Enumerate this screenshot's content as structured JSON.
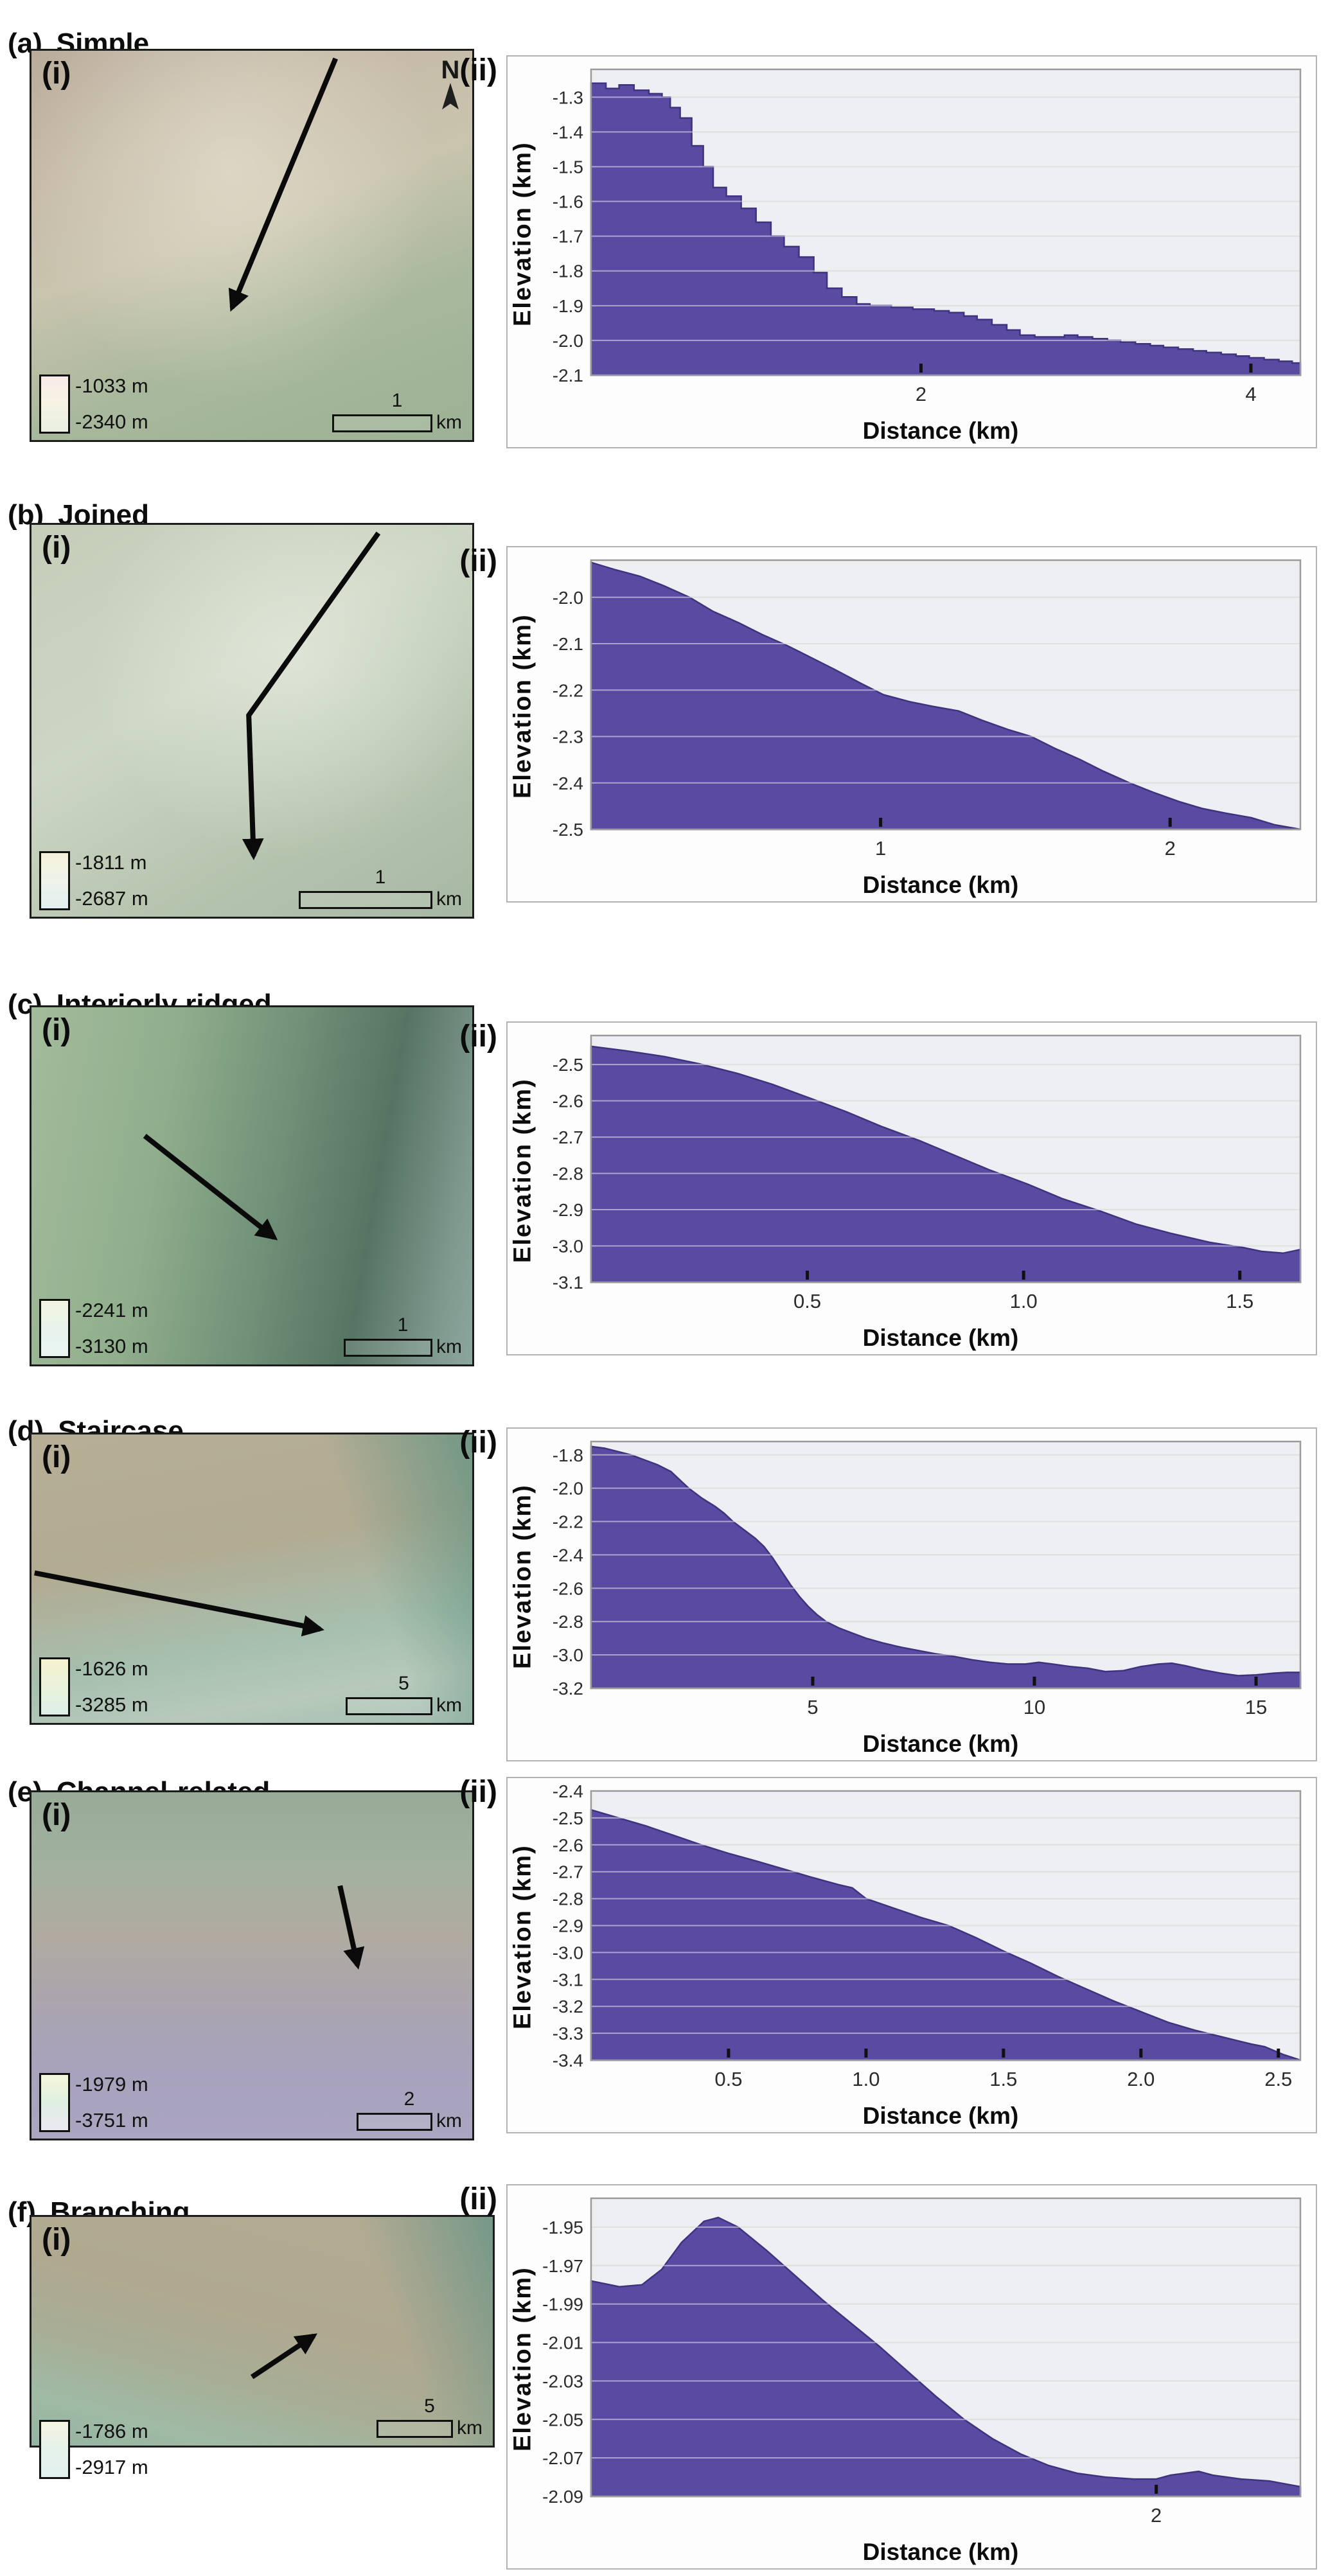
{
  "colors": {
    "profile_fill": "#5a4aa1",
    "profile_edge": "#3f3380",
    "plot_bg": "#edeff3",
    "grid": "#c2c2c2"
  },
  "panels": [
    {
      "label": "(a)",
      "title": "Simple",
      "map": {
        "sublabel": "(i)",
        "north": "N",
        "legend": {
          "top": "-1033 m",
          "bottom": "-2340 m",
          "gradient": [
            "#f8ebe9",
            "#f6f3e3",
            "#e7efe3"
          ]
        },
        "scalebar": {
          "value": "1",
          "unit": "km"
        }
      },
      "chart": {
        "sublabel": "(ii)",
        "ylabel": "Elevation (km)",
        "xlabel": "Distance (km)"
      }
    },
    {
      "label": "(b)",
      "title": "Joined",
      "map": {
        "sublabel": "(i)",
        "legend": {
          "top": "-1811 m",
          "bottom": "-2687 m",
          "gradient": [
            "#f4f1da",
            "#edf3e9",
            "#e2eff0"
          ]
        },
        "scalebar": {
          "value": "1",
          "unit": "km"
        }
      },
      "chart": {
        "sublabel": "(ii)",
        "ylabel": "Elevation (km)",
        "xlabel": "Distance (km)"
      }
    },
    {
      "label": "(c)",
      "title": "Interiorly ridged",
      "map": {
        "sublabel": "(i)",
        "legend": {
          "top": "-2241 m",
          "bottom": "-3130 m",
          "gradient": [
            "#f2f5df",
            "#e8f3ec",
            "#e9f4f2"
          ]
        },
        "scalebar": {
          "value": "1",
          "unit": "km"
        }
      },
      "chart": {
        "sublabel": "(ii)",
        "ylabel": "Elevation (km)",
        "xlabel": "Distance (km)"
      }
    },
    {
      "label": "(d)",
      "title": "Staircase",
      "map": {
        "sublabel": "(i)",
        "legend": {
          "top": "-1626 m",
          "bottom": "-3285 m",
          "gradient": [
            "#f6f2cf",
            "#e9f2da",
            "#ddefe9"
          ]
        },
        "scalebar": {
          "value": "5",
          "unit": "km"
        }
      },
      "chart": {
        "sublabel": "(ii)",
        "ylabel": "Elevation (km)",
        "xlabel": "Distance (km)"
      }
    },
    {
      "label": "(e)",
      "title": "Channel-related",
      "map": {
        "sublabel": "(i)",
        "legend": {
          "top": "-1979 m",
          "bottom": "-3751 m",
          "gradient": [
            "#f7f5d9",
            "#def0e2",
            "#ebe8f2"
          ]
        },
        "scalebar": {
          "value": "2",
          "unit": "km"
        }
      },
      "chart": {
        "sublabel": "(ii)",
        "ylabel": "Elevation (km)",
        "xlabel": "Distance (km)"
      }
    },
    {
      "label": "(f)",
      "title": "Branching",
      "map": {
        "sublabel": "(i)",
        "legend": {
          "top": "-1786 m",
          "bottom": "-2917 m",
          "gradient": [
            "#f4f4e4",
            "#e6f1ea",
            "#e1f0ef"
          ]
        },
        "scalebar": {
          "value": "5",
          "unit": "km"
        }
      },
      "chart": {
        "sublabel": "(ii)",
        "ylabel": "Elevation (km)",
        "xlabel": "Distance (km)"
      }
    }
  ],
  "chart_data": [
    {
      "type": "area",
      "style": "step",
      "xlim": [
        0,
        4.3
      ],
      "ylim": [
        -1.22,
        -2.1
      ],
      "yticks": [
        -1.3,
        -1.4,
        -1.5,
        -1.6,
        -1.7,
        -1.8,
        -1.9,
        -2.0,
        -2.1
      ],
      "ytick_labels": [
        "-1.3",
        "-1.4",
        "-1.5",
        "-1.6",
        "-1.7",
        "-1.8",
        "-1.9",
        "-2.0",
        "-2.1"
      ],
      "xticks": [
        2,
        4
      ],
      "xtick_labels": [
        "2",
        "4"
      ],
      "points": [
        [
          0,
          -1.26
        ],
        [
          0.09,
          -1.275
        ],
        [
          0.17,
          -1.265
        ],
        [
          0.26,
          -1.28
        ],
        [
          0.35,
          -1.29
        ],
        [
          0.43,
          -1.3
        ],
        [
          0.48,
          -1.33
        ],
        [
          0.54,
          -1.36
        ],
        [
          0.61,
          -1.44
        ],
        [
          0.68,
          -1.5
        ],
        [
          0.74,
          -1.56
        ],
        [
          0.82,
          -1.585
        ],
        [
          0.91,
          -1.62
        ],
        [
          1.0,
          -1.66
        ],
        [
          1.09,
          -1.7
        ],
        [
          1.17,
          -1.73
        ],
        [
          1.26,
          -1.76
        ],
        [
          1.35,
          -1.805
        ],
        [
          1.43,
          -1.85
        ],
        [
          1.52,
          -1.875
        ],
        [
          1.61,
          -1.895
        ],
        [
          1.69,
          -1.9
        ],
        [
          1.82,
          -1.905
        ],
        [
          1.95,
          -1.91
        ],
        [
          2.08,
          -1.915
        ],
        [
          2.17,
          -1.92
        ],
        [
          2.26,
          -1.93
        ],
        [
          2.34,
          -1.94
        ],
        [
          2.43,
          -1.955
        ],
        [
          2.52,
          -1.97
        ],
        [
          2.6,
          -1.985
        ],
        [
          2.69,
          -1.99
        ],
        [
          2.78,
          -1.99
        ],
        [
          2.87,
          -1.985
        ],
        [
          2.95,
          -1.99
        ],
        [
          3.04,
          -1.995
        ],
        [
          3.13,
          -2.0
        ],
        [
          3.21,
          -2.005
        ],
        [
          3.3,
          -2.01
        ],
        [
          3.39,
          -2.015
        ],
        [
          3.47,
          -2.02
        ],
        [
          3.56,
          -2.025
        ],
        [
          3.65,
          -2.03
        ],
        [
          3.73,
          -2.035
        ],
        [
          3.82,
          -2.04
        ],
        [
          3.91,
          -2.045
        ],
        [
          3.99,
          -2.05
        ],
        [
          4.08,
          -2.055
        ],
        [
          4.17,
          -2.06
        ],
        [
          4.25,
          -2.065
        ],
        [
          4.3,
          -2.07
        ]
      ]
    },
    {
      "type": "area",
      "style": "smooth",
      "xlim": [
        0,
        2.45
      ],
      "ylim": [
        -1.92,
        -2.5
      ],
      "yticks": [
        -2.0,
        -2.1,
        -2.2,
        -2.3,
        -2.4,
        -2.5
      ],
      "ytick_labels": [
        "-2.0",
        "-2.1",
        "-2.2",
        "-2.3",
        "-2.4",
        "-2.5"
      ],
      "xticks": [
        1,
        2
      ],
      "xtick_labels": [
        "1",
        "2"
      ],
      "points": [
        [
          0,
          -1.925
        ],
        [
          0.08,
          -1.94
        ],
        [
          0.17,
          -1.955
        ],
        [
          0.25,
          -1.975
        ],
        [
          0.34,
          -2.0
        ],
        [
          0.42,
          -2.03
        ],
        [
          0.51,
          -2.055
        ],
        [
          0.59,
          -2.08
        ],
        [
          0.68,
          -2.105
        ],
        [
          0.76,
          -2.13
        ],
        [
          0.84,
          -2.155
        ],
        [
          0.93,
          -2.185
        ],
        [
          1.01,
          -2.21
        ],
        [
          1.1,
          -2.225
        ],
        [
          1.18,
          -2.235
        ],
        [
          1.27,
          -2.245
        ],
        [
          1.35,
          -2.265
        ],
        [
          1.44,
          -2.285
        ],
        [
          1.52,
          -2.3
        ],
        [
          1.6,
          -2.325
        ],
        [
          1.69,
          -2.35
        ],
        [
          1.77,
          -2.375
        ],
        [
          1.86,
          -2.4
        ],
        [
          1.94,
          -2.42
        ],
        [
          2.03,
          -2.44
        ],
        [
          2.11,
          -2.455
        ],
        [
          2.19,
          -2.465
        ],
        [
          2.28,
          -2.475
        ],
        [
          2.36,
          -2.49
        ],
        [
          2.45,
          -2.5
        ]
      ]
    },
    {
      "type": "area",
      "style": "smooth",
      "xlim": [
        0,
        1.64
      ],
      "ylim": [
        -2.42,
        -3.1
      ],
      "yticks": [
        -2.5,
        -2.6,
        -2.7,
        -2.8,
        -2.9,
        -3.0,
        -3.1
      ],
      "ytick_labels": [
        "-2.5",
        "-2.6",
        "-2.7",
        "-2.8",
        "-2.9",
        "-3.0",
        "-3.1"
      ],
      "xticks": [
        0.5,
        1.0,
        1.5
      ],
      "xtick_labels": [
        "0.5",
        "1.0",
        "1.5"
      ],
      "points": [
        [
          0,
          -2.45
        ],
        [
          0.08,
          -2.462
        ],
        [
          0.17,
          -2.478
        ],
        [
          0.25,
          -2.498
        ],
        [
          0.34,
          -2.525
        ],
        [
          0.42,
          -2.555
        ],
        [
          0.5,
          -2.59
        ],
        [
          0.59,
          -2.63
        ],
        [
          0.67,
          -2.67
        ],
        [
          0.76,
          -2.71
        ],
        [
          0.84,
          -2.75
        ],
        [
          0.92,
          -2.79
        ],
        [
          1.01,
          -2.83
        ],
        [
          1.09,
          -2.87
        ],
        [
          1.18,
          -2.905
        ],
        [
          1.26,
          -2.94
        ],
        [
          1.34,
          -2.965
        ],
        [
          1.43,
          -2.99
        ],
        [
          1.51,
          -3.005
        ],
        [
          1.55,
          -3.015
        ],
        [
          1.6,
          -3.02
        ],
        [
          1.64,
          -3.01
        ]
      ]
    },
    {
      "type": "area",
      "style": "smooth",
      "xlim": [
        0,
        16
      ],
      "ylim": [
        -1.72,
        -3.2
      ],
      "yticks": [
        -1.8,
        -2.0,
        -2.2,
        -2.4,
        -2.6,
        -2.8,
        -3.0,
        -3.2
      ],
      "ytick_labels": [
        "-1.8",
        "-2.0",
        "-2.2",
        "-2.4",
        "-2.6",
        "-2.8",
        "-3.0",
        "-3.2"
      ],
      "xticks": [
        5,
        10,
        15
      ],
      "xtick_labels": [
        "5",
        "10",
        "15"
      ],
      "points": [
        [
          0,
          -1.75
        ],
        [
          0.3,
          -1.76
        ],
        [
          0.6,
          -1.78
        ],
        [
          0.9,
          -1.8
        ],
        [
          1.2,
          -1.83
        ],
        [
          1.5,
          -1.86
        ],
        [
          1.8,
          -1.9
        ],
        [
          2.0,
          -1.95
        ],
        [
          2.2,
          -2.0
        ],
        [
          2.5,
          -2.06
        ],
        [
          2.8,
          -2.11
        ],
        [
          3.0,
          -2.15
        ],
        [
          3.2,
          -2.2
        ],
        [
          3.5,
          -2.26
        ],
        [
          3.7,
          -2.3
        ],
        [
          3.9,
          -2.35
        ],
        [
          4.1,
          -2.42
        ],
        [
          4.3,
          -2.5
        ],
        [
          4.5,
          -2.58
        ],
        [
          4.7,
          -2.65
        ],
        [
          4.9,
          -2.71
        ],
        [
          5.1,
          -2.76
        ],
        [
          5.3,
          -2.8
        ],
        [
          5.6,
          -2.84
        ],
        [
          5.9,
          -2.87
        ],
        [
          6.2,
          -2.9
        ],
        [
          6.6,
          -2.93
        ],
        [
          7.0,
          -2.955
        ],
        [
          7.4,
          -2.975
        ],
        [
          7.8,
          -2.995
        ],
        [
          8.2,
          -3.01
        ],
        [
          8.6,
          -3.03
        ],
        [
          9.0,
          -3.045
        ],
        [
          9.4,
          -3.055
        ],
        [
          9.8,
          -3.055
        ],
        [
          10.1,
          -3.045
        ],
        [
          10.4,
          -3.055
        ],
        [
          10.8,
          -3.07
        ],
        [
          11.2,
          -3.08
        ],
        [
          11.6,
          -3.1
        ],
        [
          12.0,
          -3.095
        ],
        [
          12.4,
          -3.07
        ],
        [
          12.8,
          -3.055
        ],
        [
          13.1,
          -3.05
        ],
        [
          13.4,
          -3.065
        ],
        [
          13.8,
          -3.09
        ],
        [
          14.2,
          -3.11
        ],
        [
          14.6,
          -3.125
        ],
        [
          15.0,
          -3.12
        ],
        [
          15.4,
          -3.11
        ],
        [
          15.7,
          -3.105
        ],
        [
          16.0,
          -3.105
        ]
      ]
    },
    {
      "type": "area",
      "style": "smooth",
      "xlim": [
        0,
        2.58
      ],
      "ylim": [
        -2.4,
        -3.4
      ],
      "yticks": [
        -2.4,
        -2.5,
        -2.6,
        -2.7,
        -2.8,
        -2.9,
        -3.0,
        -3.1,
        -3.2,
        -3.3,
        -3.4
      ],
      "ytick_labels": [
        "-2.4",
        "-2.5",
        "-2.6",
        "-2.7",
        "-2.8",
        "-2.9",
        "-3.0",
        "-3.1",
        "-3.2",
        "-3.3",
        "-3.4"
      ],
      "xticks": [
        0.5,
        1.0,
        1.5,
        2.0,
        2.5
      ],
      "xtick_labels": [
        "0.5",
        "1.0",
        "1.5",
        "2.0",
        "2.5"
      ],
      "points": [
        [
          0,
          -2.47
        ],
        [
          0.1,
          -2.5
        ],
        [
          0.2,
          -2.53
        ],
        [
          0.3,
          -2.565
        ],
        [
          0.4,
          -2.6
        ],
        [
          0.5,
          -2.632
        ],
        [
          0.6,
          -2.66
        ],
        [
          0.7,
          -2.69
        ],
        [
          0.8,
          -2.72
        ],
        [
          0.9,
          -2.748
        ],
        [
          0.95,
          -2.76
        ],
        [
          1.0,
          -2.8
        ],
        [
          1.1,
          -2.835
        ],
        [
          1.2,
          -2.87
        ],
        [
          1.3,
          -2.9
        ],
        [
          1.4,
          -2.945
        ],
        [
          1.5,
          -2.995
        ],
        [
          1.6,
          -3.04
        ],
        [
          1.7,
          -3.09
        ],
        [
          1.8,
          -3.135
        ],
        [
          1.9,
          -3.18
        ],
        [
          2.0,
          -3.22
        ],
        [
          2.1,
          -3.26
        ],
        [
          2.2,
          -3.29
        ],
        [
          2.3,
          -3.315
        ],
        [
          2.4,
          -3.34
        ],
        [
          2.45,
          -3.35
        ],
        [
          2.52,
          -3.38
        ],
        [
          2.58,
          -3.4
        ]
      ]
    },
    {
      "type": "area",
      "style": "smooth",
      "xlim": [
        0,
        2.51
      ],
      "ylim": [
        -1.935,
        -2.09
      ],
      "yticks": [
        -1.95,
        -1.97,
        -1.99,
        -2.01,
        -2.03,
        -2.05,
        -2.07,
        -2.09
      ],
      "ytick_labels": [
        "-1.95",
        "-1.97",
        "-1.99",
        "-2.01",
        "-2.03",
        "-2.05",
        "-2.07",
        "-2.09"
      ],
      "xticks": [
        2
      ],
      "xtick_labels": [
        "2"
      ],
      "points": [
        [
          0,
          -1.978
        ],
        [
          0.1,
          -1.981
        ],
        [
          0.18,
          -1.98
        ],
        [
          0.25,
          -1.972
        ],
        [
          0.32,
          -1.958
        ],
        [
          0.4,
          -1.947
        ],
        [
          0.45,
          -1.945
        ],
        [
          0.52,
          -1.95
        ],
        [
          0.62,
          -1.962
        ],
        [
          0.72,
          -1.975
        ],
        [
          0.82,
          -1.988
        ],
        [
          0.92,
          -2.0
        ],
        [
          1.02,
          -2.012
        ],
        [
          1.12,
          -2.025
        ],
        [
          1.22,
          -2.038
        ],
        [
          1.32,
          -2.05
        ],
        [
          1.42,
          -2.06
        ],
        [
          1.52,
          -2.068
        ],
        [
          1.62,
          -2.074
        ],
        [
          1.72,
          -2.078
        ],
        [
          1.82,
          -2.08
        ],
        [
          1.92,
          -2.081
        ],
        [
          2.0,
          -2.081
        ],
        [
          2.05,
          -2.079
        ],
        [
          2.1,
          -2.078
        ],
        [
          2.15,
          -2.077
        ],
        [
          2.2,
          -2.079
        ],
        [
          2.3,
          -2.081
        ],
        [
          2.4,
          -2.082
        ],
        [
          2.51,
          -2.085
        ]
      ]
    }
  ]
}
